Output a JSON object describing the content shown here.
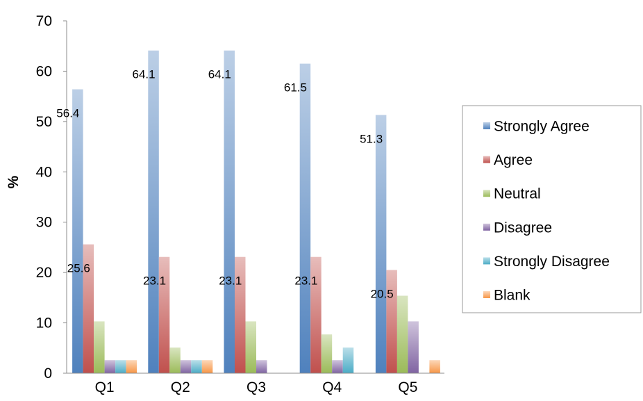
{
  "chart_data": {
    "type": "bar",
    "title": "",
    "xlabel": "",
    "ylabel": "%",
    "ylim": [
      0,
      70
    ],
    "yticks": [
      0,
      10,
      20,
      30,
      40,
      50,
      60,
      70
    ],
    "categories": [
      "Q1",
      "Q2",
      "Q3",
      "Q4",
      "Q5"
    ],
    "series": [
      {
        "name": "Strongly Agree",
        "color": "#4f81bd",
        "values": [
          56.4,
          64.1,
          64.1,
          61.5,
          51.3
        ]
      },
      {
        "name": "Agree",
        "color": "#c0504d",
        "values": [
          25.6,
          23.1,
          23.1,
          23.1,
          20.5
        ]
      },
      {
        "name": "Neutral",
        "color": "#9bbb59",
        "values": [
          10.3,
          5.1,
          10.3,
          7.7,
          15.4
        ]
      },
      {
        "name": "Disagree",
        "color": "#8064a2",
        "values": [
          2.6,
          2.6,
          2.6,
          2.6,
          10.3
        ]
      },
      {
        "name": "Strongly Disagree",
        "color": "#4bacc6",
        "values": [
          2.6,
          2.6,
          0,
          5.1,
          0
        ]
      },
      {
        "name": "Blank",
        "color": "#f79646",
        "values": [
          2.6,
          2.6,
          0,
          0,
          2.6
        ]
      }
    ],
    "data_labels": [
      {
        "series": "Strongly Agree",
        "values": [
          "56.4",
          "64.1",
          "64.1",
          "61.5",
          "51.3"
        ]
      },
      {
        "series": "Agree",
        "values": [
          "25.6",
          "23.1",
          "23.1",
          "23.1",
          "20.5"
        ]
      }
    ],
    "grid": false,
    "legend_position": "right"
  }
}
